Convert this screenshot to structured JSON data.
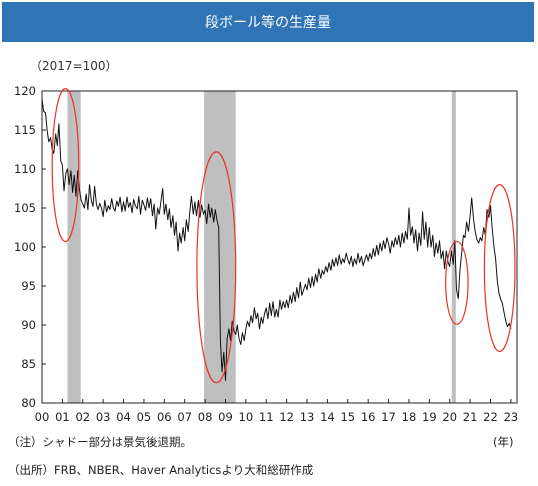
{
  "header": {
    "title": "段ボール等の生産量"
  },
  "notes": {
    "unit": "（2017=100）",
    "shade_note": "（注）シャドー部分は景気後退期。",
    "source": "（出所）FRB、NBER、Haver Analyticsより大和総研作成",
    "year_unit": "(年)"
  },
  "colors": {
    "title_bg": "#2f74b5",
    "line": "#111111",
    "shade": "#bfbfbf",
    "ellipse": "#e8332a"
  },
  "chart_data": {
    "type": "line",
    "ylim": [
      80,
      120
    ],
    "xlim": [
      2000.0,
      2023.3
    ],
    "y_ticks": [
      80,
      85,
      90,
      95,
      100,
      105,
      110,
      115,
      120
    ],
    "x_ticks": [
      "00",
      "01",
      "02",
      "03",
      "04",
      "05",
      "06",
      "07",
      "08",
      "09",
      "10",
      "11",
      "12",
      "13",
      "14",
      "15",
      "16",
      "17",
      "18",
      "19",
      "20",
      "21",
      "22",
      "23"
    ],
    "grid": false,
    "recessions": [
      [
        2001.25,
        2001.9
      ],
      [
        2007.95,
        2009.5
      ],
      [
        2020.1,
        2020.3
      ]
    ],
    "highlights": [
      {
        "cx": 2001.15,
        "cy": 110.5,
        "rx": 0.65,
        "ry": 9.8
      },
      {
        "cx": 2008.55,
        "cy": 97.4,
        "rx": 0.95,
        "ry": 14.8
      },
      {
        "cx": 2020.35,
        "cy": 95.4,
        "rx": 0.55,
        "ry": 5.3
      },
      {
        "cx": 2022.45,
        "cy": 97.3,
        "rx": 0.75,
        "ry": 10.7
      }
    ],
    "series": [
      {
        "values": [
          [
            2000.0,
            119.0
          ],
          [
            2000.08,
            117.4
          ],
          [
            2000.17,
            117.2
          ],
          [
            2000.25,
            115.0
          ],
          [
            2000.33,
            113.5
          ],
          [
            2000.42,
            114.0
          ],
          [
            2000.5,
            112.5
          ],
          [
            2000.58,
            112.0
          ],
          [
            2000.67,
            114.5
          ],
          [
            2000.75,
            113.0
          ],
          [
            2000.83,
            115.8
          ],
          [
            2000.92,
            111.0
          ],
          [
            2001.0,
            110.5
          ],
          [
            2001.08,
            107.2
          ],
          [
            2001.17,
            109.5
          ],
          [
            2001.25,
            110.0
          ],
          [
            2001.33,
            108.0
          ],
          [
            2001.42,
            109.8
          ],
          [
            2001.5,
            107.0
          ],
          [
            2001.58,
            109.2
          ],
          [
            2001.67,
            106.5
          ],
          [
            2001.75,
            109.8
          ],
          [
            2001.83,
            107.5
          ],
          [
            2001.92,
            106.0
          ],
          [
            2002.0,
            105.5
          ],
          [
            2002.08,
            105.0
          ],
          [
            2002.17,
            106.8
          ],
          [
            2002.25,
            104.8
          ],
          [
            2002.33,
            108.0
          ],
          [
            2002.42,
            106.0
          ],
          [
            2002.5,
            105.2
          ],
          [
            2002.58,
            107.8
          ],
          [
            2002.67,
            105.5
          ],
          [
            2002.75,
            104.8
          ],
          [
            2002.83,
            105.6
          ],
          [
            2002.92,
            105.0
          ],
          [
            2003.0,
            103.9
          ],
          [
            2003.08,
            106.0
          ],
          [
            2003.17,
            104.5
          ],
          [
            2003.25,
            105.3
          ],
          [
            2003.33,
            104.8
          ],
          [
            2003.42,
            106.2
          ],
          [
            2003.5,
            105.0
          ],
          [
            2003.58,
            104.6
          ],
          [
            2003.67,
            105.9
          ],
          [
            2003.75,
            105.2
          ],
          [
            2003.83,
            106.4
          ],
          [
            2003.92,
            104.5
          ],
          [
            2004.0,
            105.8
          ],
          [
            2004.08,
            104.6
          ],
          [
            2004.17,
            106.4
          ],
          [
            2004.25,
            105.1
          ],
          [
            2004.33,
            105.7
          ],
          [
            2004.42,
            104.4
          ],
          [
            2004.5,
            106.1
          ],
          [
            2004.58,
            105.3
          ],
          [
            2004.67,
            104.9
          ],
          [
            2004.75,
            106.5
          ],
          [
            2004.83,
            104.2
          ],
          [
            2004.92,
            106.0
          ],
          [
            2005.0,
            105.4
          ],
          [
            2005.08,
            104.7
          ],
          [
            2005.17,
            106.3
          ],
          [
            2005.25,
            105.0
          ],
          [
            2005.33,
            106.2
          ],
          [
            2005.42,
            104.0
          ],
          [
            2005.5,
            105.5
          ],
          [
            2005.58,
            102.3
          ],
          [
            2005.67,
            105.0
          ],
          [
            2005.75,
            104.2
          ],
          [
            2005.83,
            105.8
          ],
          [
            2005.92,
            107.5
          ],
          [
            2006.0,
            104.2
          ],
          [
            2006.08,
            105.5
          ],
          [
            2006.17,
            103.5
          ],
          [
            2006.25,
            104.9
          ],
          [
            2006.33,
            102.5
          ],
          [
            2006.42,
            104.0
          ],
          [
            2006.5,
            101.5
          ],
          [
            2006.58,
            103.2
          ],
          [
            2006.67,
            99.5
          ],
          [
            2006.75,
            101.8
          ],
          [
            2006.83,
            100.5
          ],
          [
            2006.92,
            102.5
          ],
          [
            2007.0,
            100.8
          ],
          [
            2007.08,
            103.5
          ],
          [
            2007.17,
            102.0
          ],
          [
            2007.25,
            104.5
          ],
          [
            2007.33,
            106.5
          ],
          [
            2007.42,
            104.2
          ],
          [
            2007.5,
            105.8
          ],
          [
            2007.58,
            104.0
          ],
          [
            2007.67,
            106.0
          ],
          [
            2007.75,
            103.8
          ],
          [
            2007.83,
            105.4
          ],
          [
            2007.92,
            104.2
          ],
          [
            2008.0,
            104.7
          ],
          [
            2008.08,
            103.0
          ],
          [
            2008.17,
            105.5
          ],
          [
            2008.25,
            103.8
          ],
          [
            2008.33,
            105.0
          ],
          [
            2008.42,
            103.2
          ],
          [
            2008.5,
            104.8
          ],
          [
            2008.58,
            103.5
          ],
          [
            2008.67,
            102.5
          ],
          [
            2008.75,
            88.0
          ],
          [
            2008.83,
            84.0
          ],
          [
            2008.92,
            86.5
          ],
          [
            2009.0,
            82.9
          ],
          [
            2009.08,
            88.2
          ],
          [
            2009.17,
            89.5
          ],
          [
            2009.25,
            88.0
          ],
          [
            2009.33,
            90.5
          ],
          [
            2009.42,
            89.2
          ],
          [
            2009.5,
            88.8
          ],
          [
            2009.58,
            90.0
          ],
          [
            2009.67,
            88.2
          ],
          [
            2009.75,
            87.5
          ],
          [
            2009.83,
            89.0
          ],
          [
            2009.92,
            88.0
          ],
          [
            2010.0,
            89.5
          ],
          [
            2010.08,
            90.5
          ],
          [
            2010.17,
            89.8
          ],
          [
            2010.25,
            91.2
          ],
          [
            2010.33,
            90.3
          ],
          [
            2010.42,
            92.2
          ],
          [
            2010.5,
            90.8
          ],
          [
            2010.58,
            91.5
          ],
          [
            2010.67,
            89.5
          ],
          [
            2010.75,
            91.0
          ],
          [
            2010.83,
            90.2
          ],
          [
            2010.92,
            91.5
          ],
          [
            2011.0,
            92.2
          ],
          [
            2011.08,
            90.8
          ],
          [
            2011.17,
            92.8
          ],
          [
            2011.25,
            91.2
          ],
          [
            2011.33,
            93.0
          ],
          [
            2011.42,
            91.0
          ],
          [
            2011.5,
            92.0
          ],
          [
            2011.58,
            91.0
          ],
          [
            2011.67,
            93.2
          ],
          [
            2011.75,
            92.0
          ],
          [
            2011.83,
            93.0
          ],
          [
            2011.92,
            92.2
          ],
          [
            2012.0,
            93.2
          ],
          [
            2012.08,
            92.2
          ],
          [
            2012.17,
            93.8
          ],
          [
            2012.25,
            92.8
          ],
          [
            2012.33,
            94.2
          ],
          [
            2012.42,
            93.0
          ],
          [
            2012.5,
            94.8
          ],
          [
            2012.58,
            93.5
          ],
          [
            2012.67,
            95.5
          ],
          [
            2012.75,
            93.8
          ],
          [
            2012.83,
            94.5
          ],
          [
            2012.92,
            95.2
          ],
          [
            2013.0,
            94.5
          ],
          [
            2013.08,
            96.0
          ],
          [
            2013.17,
            94.8
          ],
          [
            2013.25,
            96.2
          ],
          [
            2013.33,
            95.0
          ],
          [
            2013.42,
            96.5
          ],
          [
            2013.5,
            95.5
          ],
          [
            2013.58,
            97.2
          ],
          [
            2013.67,
            96.0
          ],
          [
            2013.75,
            97.0
          ],
          [
            2013.83,
            96.5
          ],
          [
            2013.92,
            97.5
          ],
          [
            2014.0,
            96.8
          ],
          [
            2014.08,
            98.0
          ],
          [
            2014.17,
            97.0
          ],
          [
            2014.25,
            98.4
          ],
          [
            2014.33,
            97.5
          ],
          [
            2014.42,
            98.6
          ],
          [
            2014.5,
            97.6
          ],
          [
            2014.58,
            99.0
          ],
          [
            2014.67,
            97.8
          ],
          [
            2014.75,
            98.5
          ],
          [
            2014.83,
            98.0
          ],
          [
            2014.92,
            99.2
          ],
          [
            2015.0,
            98.4
          ],
          [
            2015.08,
            97.8
          ],
          [
            2015.17,
            98.8
          ],
          [
            2015.25,
            97.5
          ],
          [
            2015.33,
            98.5
          ],
          [
            2015.42,
            97.8
          ],
          [
            2015.5,
            99.2
          ],
          [
            2015.58,
            98.0
          ],
          [
            2015.67,
            98.8
          ],
          [
            2015.75,
            97.6
          ],
          [
            2015.83,
            98.3
          ],
          [
            2015.92,
            99.0
          ],
          [
            2016.0,
            98.2
          ],
          [
            2016.08,
            99.2
          ],
          [
            2016.17,
            98.5
          ],
          [
            2016.25,
            99.8
          ],
          [
            2016.33,
            98.8
          ],
          [
            2016.42,
            100.2
          ],
          [
            2016.5,
            99.0
          ],
          [
            2016.58,
            100.5
          ],
          [
            2016.67,
            99.5
          ],
          [
            2016.75,
            100.8
          ],
          [
            2016.83,
            99.8
          ],
          [
            2016.92,
            101.2
          ],
          [
            2017.0,
            100.4
          ],
          [
            2017.08,
            99.2
          ],
          [
            2017.17,
            100.8
          ],
          [
            2017.25,
            100.0
          ],
          [
            2017.33,
            101.2
          ],
          [
            2017.42,
            100.3
          ],
          [
            2017.5,
            101.5
          ],
          [
            2017.58,
            100.0
          ],
          [
            2017.67,
            101.8
          ],
          [
            2017.75,
            100.5
          ],
          [
            2017.83,
            102.0
          ],
          [
            2017.92,
            101.0
          ],
          [
            2018.0,
            105.0
          ],
          [
            2018.08,
            101.5
          ],
          [
            2018.17,
            102.6
          ],
          [
            2018.25,
            100.5
          ],
          [
            2018.33,
            102.2
          ],
          [
            2018.42,
            99.5
          ],
          [
            2018.5,
            101.8
          ],
          [
            2018.58,
            100.2
          ],
          [
            2018.67,
            104.5
          ],
          [
            2018.75,
            101.0
          ],
          [
            2018.83,
            103.2
          ],
          [
            2018.92,
            100.0
          ],
          [
            2019.0,
            102.5
          ],
          [
            2019.08,
            100.0
          ],
          [
            2019.17,
            101.5
          ],
          [
            2019.25,
            98.8
          ],
          [
            2019.33,
            100.5
          ],
          [
            2019.42,
            99.2
          ],
          [
            2019.5,
            100.8
          ],
          [
            2019.58,
            98.5
          ],
          [
            2019.67,
            99.5
          ],
          [
            2019.75,
            97.2
          ],
          [
            2019.83,
            99.5
          ],
          [
            2019.92,
            98.0
          ],
          [
            2020.0,
            97.5
          ],
          [
            2020.08,
            99.5
          ],
          [
            2020.17,
            97.8
          ],
          [
            2020.25,
            100.8
          ],
          [
            2020.33,
            94.5
          ],
          [
            2020.42,
            93.4
          ],
          [
            2020.5,
            97.0
          ],
          [
            2020.58,
            99.0
          ],
          [
            2020.67,
            101.5
          ],
          [
            2020.75,
            101.2
          ],
          [
            2020.83,
            103.2
          ],
          [
            2020.92,
            102.0
          ],
          [
            2021.0,
            104.0
          ],
          [
            2021.08,
            106.3
          ],
          [
            2021.17,
            103.5
          ],
          [
            2021.25,
            102.0
          ],
          [
            2021.33,
            101.0
          ],
          [
            2021.42,
            100.5
          ],
          [
            2021.5,
            101.2
          ],
          [
            2021.58,
            100.8
          ],
          [
            2021.67,
            102.5
          ],
          [
            2021.75,
            101.5
          ],
          [
            2021.83,
            104.8
          ],
          [
            2021.92,
            103.8
          ],
          [
            2022.0,
            105.3
          ],
          [
            2022.08,
            102.5
          ],
          [
            2022.17,
            100.0
          ],
          [
            2022.25,
            98.5
          ],
          [
            2022.33,
            95.8
          ],
          [
            2022.42,
            94.0
          ],
          [
            2022.5,
            93.3
          ],
          [
            2022.58,
            92.8
          ],
          [
            2022.67,
            91.5
          ],
          [
            2022.75,
            90.5
          ],
          [
            2022.83,
            89.8
          ],
          [
            2022.92,
            90.2
          ],
          [
            2023.0,
            89.5
          ]
        ]
      }
    ]
  }
}
